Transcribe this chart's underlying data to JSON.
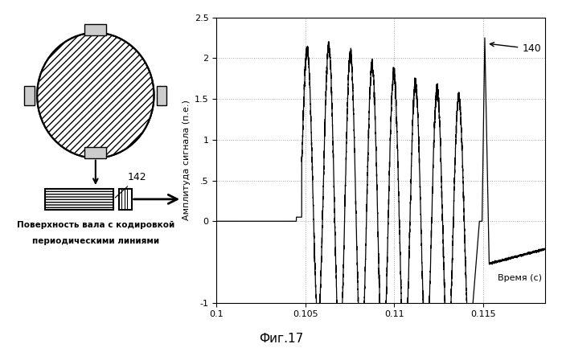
{
  "title": "Фиг.17",
  "ylabel": "Амплитуда сигнала (п.е.)",
  "xlabel": "Время (с)",
  "xlim": [
    0.1,
    0.1185
  ],
  "ylim": [
    -1.0,
    2.5
  ],
  "ytick_vals": [
    -1.0,
    0.0,
    0.5,
    1.0,
    1.5,
    2.0,
    2.5
  ],
  "ytick_labels": [
    "-1",
    "0",
    ".5",
    "1",
    "1.5",
    "2",
    "2.5"
  ],
  "xticks": [
    0.1,
    0.105,
    0.11,
    0.115
  ],
  "xtick_labels": [
    "0.1",
    "0.105",
    "0.11",
    "0.115"
  ],
  "annotation_label": "140",
  "left_panel_label1": "Поверхность вала с кодировкой",
  "left_panel_label2": "периодическими линиями",
  "label_142": "142",
  "background_color": "#ffffff",
  "line_color": "#000000",
  "grid_color": "#aaaaaa",
  "grid_style": ":"
}
